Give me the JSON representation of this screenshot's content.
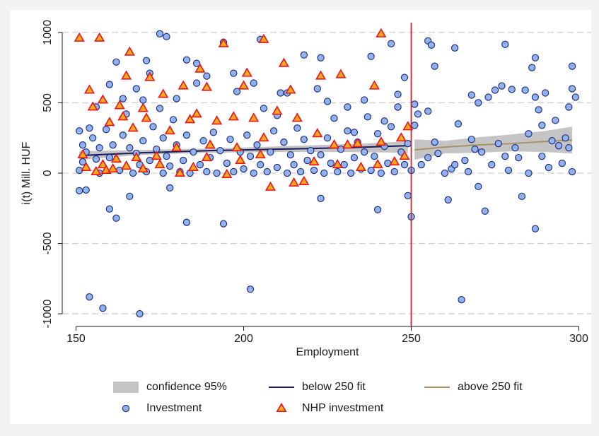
{
  "chart_data": {
    "type": "scatter",
    "xlabel": "Employment",
    "ylabel": "i(t) Mill. HUF",
    "xlim": [
      148,
      302
    ],
    "ylim": [
      -1090,
      1100
    ],
    "xticks": [
      150,
      200,
      250,
      300
    ],
    "yticks": [
      -1000,
      -500,
      0,
      500,
      1000
    ],
    "grid": true,
    "legend": "bottom",
    "vline": {
      "x": 250,
      "color": "#e8141e"
    },
    "series": [
      {
        "name": "confidence 95%",
        "type": "band",
        "color": "#c4c4c4",
        "x": [
          151,
          170,
          190,
          210,
          230,
          249,
          250,
          251,
          260,
          270,
          280,
          290,
          298
        ],
        "lower": [
          95,
          130,
          145,
          150,
          150,
          145,
          null,
          95,
          140,
          145,
          155,
          150,
          140
        ],
        "upper": [
          155,
          165,
          175,
          190,
          205,
          225,
          null,
          240,
          230,
          255,
          275,
          300,
          330
        ]
      },
      {
        "name": "below 250 fit",
        "type": "line",
        "color": "#1a1a5e",
        "x": [
          151,
          170,
          190,
          210,
          230,
          249
        ],
        "values": [
          125,
          145,
          160,
          170,
          180,
          195
        ]
      },
      {
        "name": "above 250 fit",
        "type": "line",
        "color": "#a89068",
        "x": [
          251,
          260,
          270,
          280,
          290,
          298
        ],
        "values": [
          165,
          185,
          200,
          210,
          225,
          235
        ]
      },
      {
        "name": "Investment",
        "type": "scatter",
        "marker": "circle",
        "color": "#8fb3ea",
        "edge": "#1a237e",
        "x": [
          151,
          153,
          154,
          158,
          160,
          162,
          166,
          169,
          178,
          183,
          194,
          202,
          223,
          240,
          249,
          250,
          261,
          265,
          272,
          270,
          283,
          287,
          175,
          177,
          194,
          205,
          186,
          183,
          162,
          171,
          218,
          223,
          238,
          244,
          255,
          256,
          257,
          263,
          278,
          287,
          286,
          298,
          251,
          255,
          275,
          277,
          280,
          284,
          290,
          298,
          299,
          252,
          264,
          268,
          273,
          270,
          287,
          288,
          289,
          293,
          297,
          294,
          296,
          251,
          268,
          276,
          255,
          258,
          262,
          266,
          271,
          274,
          279,
          282,
          285,
          291,
          295,
          298,
          253,
          260,
          267,
          281,
          289,
          292,
          297,
          257,
          269,
          285,
          278,
          263,
          151,
          152,
          151,
          152,
          153,
          154,
          155,
          156,
          157,
          157,
          159,
          160,
          161,
          163,
          164,
          165,
          166,
          167,
          168,
          169,
          170,
          170,
          171,
          172,
          173,
          174,
          175,
          176,
          176,
          177,
          178,
          179,
          180,
          181,
          182,
          183,
          184,
          185,
          186,
          187,
          188,
          189,
          190,
          191,
          192,
          193,
          195,
          196,
          197,
          198,
          199,
          200,
          201,
          202,
          203,
          204,
          205,
          206,
          207,
          208,
          209,
          210,
          211,
          212,
          213,
          214,
          215,
          216,
          217,
          218,
          219,
          220,
          221,
          222,
          223,
          224,
          225,
          226,
          227,
          228,
          229,
          230,
          231,
          232,
          233,
          234,
          235,
          236,
          237,
          238,
          239,
          240,
          241,
          242,
          243,
          244,
          245,
          246,
          247,
          248,
          249,
          250,
          248,
          246,
          236,
          231,
          213,
          203,
          197,
          189,
          180,
          172,
          168,
          156,
          160,
          164,
          210,
          225,
          233,
          242
        ],
        "values": [
          -125,
          -120,
          -880,
          -960,
          -255,
          -320,
          -165,
          -1000,
          -105,
          -350,
          -360,
          -825,
          -180,
          -260,
          -160,
          -310,
          -190,
          -900,
          -270,
          -95,
          -165,
          -395,
          990,
          970,
          930,
          950,
          780,
          805,
          790,
          800,
          840,
          820,
          830,
          920,
          940,
          910,
          760,
          890,
          915,
          820,
          750,
          760,
          490,
          440,
          590,
          620,
          595,
          590,
          570,
          600,
          540,
          420,
          350,
          555,
          540,
          500,
          540,
          450,
          340,
          375,
          470,
          195,
          250,
          340,
          240,
          210,
          110,
          140,
          30,
          90,
          150,
          60,
          20,
          110,
          0,
          40,
          70,
          10,
          60,
          0,
          10,
          180,
          120,
          230,
          180,
          220,
          170,
          280,
          120,
          60,
          300,
          200,
          20,
          80,
          150,
          320,
          250,
          100,
          0,
          180,
          310,
          110,
          200,
          20,
          270,
          420,
          180,
          0,
          140,
          60,
          520,
          230,
          10,
          90,
          330,
          170,
          460,
          0,
          250,
          120,
          50,
          380,
          200,
          10,
          90,
          270,
          0,
          150,
          640,
          60,
          230,
          10,
          110,
          290,
          0,
          160,
          70,
          240,
          10,
          580,
          150,
          30,
          270,
          120,
          0,
          200,
          60,
          460,
          10,
          150,
          300,
          40,
          570,
          220,
          0,
          130,
          60,
          320,
          10,
          240,
          90,
          160,
          20,
          600,
          130,
          0,
          250,
          70,
          390,
          10,
          170,
          60,
          300,
          0,
          110,
          220,
          30,
          150,
          400,
          20,
          120,
          280,
          0,
          190,
          70,
          330,
          10,
          470,
          150,
          60,
          210,
          20,
          680,
          560,
          520,
          470,
          570,
          640,
          710,
          690,
          530,
          710,
          600,
          470,
          630,
          530,
          410,
          510,
          290,
          370
        ]
      },
      {
        "name": "NHP investment",
        "type": "scatter",
        "marker": "triangle",
        "color": "#f7a81b",
        "edge": "#e8141e",
        "x": [
          151,
          157,
          166,
          194,
          206,
          241,
          165,
          172,
          187,
          201,
          212,
          229,
          223,
          176,
          182,
          189,
          200,
          214,
          239,
          154,
          155,
          158,
          163,
          170,
          160,
          164,
          167,
          171,
          178,
          184,
          186,
          192,
          197,
          203,
          210,
          216,
          222,
          227,
          231,
          234,
          241,
          247,
          249,
          206,
          198,
          190,
          180,
          174,
          168,
          162,
          158,
          153,
          152,
          156,
          159,
          161,
          165,
          170,
          175,
          181,
          185,
          189,
          195,
          199,
          205,
          208,
          215,
          218,
          221,
          228,
          235,
          240,
          245,
          248
        ],
        "values": [
          960,
          960,
          860,
          920,
          950,
          990,
          690,
          680,
          740,
          710,
          780,
          700,
          690,
          560,
          620,
          610,
          620,
          590,
          620,
          590,
          470,
          520,
          480,
          460,
          360,
          400,
          320,
          390,
          300,
          380,
          420,
          370,
          400,
          390,
          440,
          390,
          280,
          200,
          200,
          210,
          220,
          250,
          330,
          250,
          180,
          200,
          180,
          120,
          110,
          100,
          60,
          40,
          130,
          10,
          20,
          30,
          50,
          30,
          60,
          0,
          40,
          110,
          -10,
          90,
          130,
          -100,
          -70,
          -60,
          80,
          60,
          40,
          60,
          80,
          120
        ]
      }
    ]
  }
}
